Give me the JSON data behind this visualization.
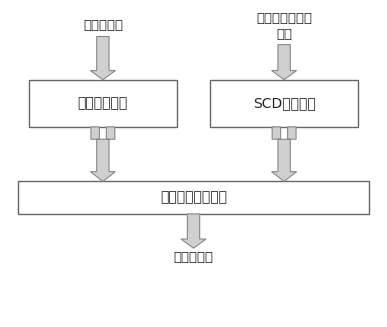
{
  "bg_color": "#ffffff",
  "box_color": "#ffffff",
  "box_edge_color": "#666666",
  "arrow_fill": "#d0d0d0",
  "arrow_edge": "#888888",
  "text_color": "#222222",
  "box1_label": "规则模板模块",
  "box2_label": "SCD解析模块",
  "box3_label": "信息参数整定模块",
  "label1": "变电站信息",
  "label2": "变电站静态配置\n文件",
  "label3": "自动化信息",
  "fontsize": 10,
  "label_fontsize": 9.5,
  "xlim": [
    0,
    10
  ],
  "ylim": [
    0,
    10
  ]
}
